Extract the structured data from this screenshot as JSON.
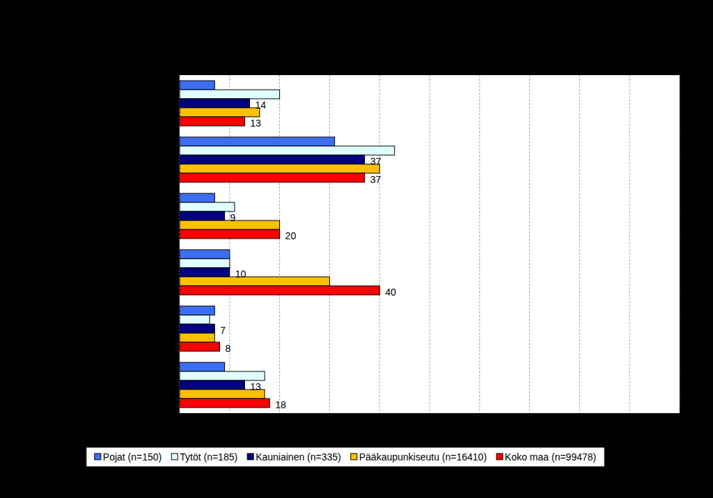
{
  "chart_data": {
    "type": "bar",
    "orientation": "horizontal",
    "categories": [
      null,
      null,
      null,
      null,
      null,
      null
    ],
    "series": [
      {
        "name": "Pojat (n=150)",
        "color": "#3d6ef2",
        "values": [
          7,
          31,
          7,
          10,
          7,
          9
        ],
        "data_labels": false
      },
      {
        "name": "Tytöt (n=185)",
        "color": "#e0ffff",
        "values": [
          20,
          43,
          11,
          10,
          6,
          17
        ],
        "data_labels": false
      },
      {
        "name": "Kauniainen (n=335)",
        "color": "#000080",
        "values": [
          14,
          37,
          9,
          10,
          7,
          13
        ],
        "data_labels": true
      },
      {
        "name": "Pääkaupunkiseutu (n=16410)",
        "color": "#ffc000",
        "values": [
          16,
          40,
          20,
          30,
          7,
          17
        ],
        "data_labels": false
      },
      {
        "name": "Koko maa (n=99478)",
        "color": "#ff0000",
        "values": [
          13,
          37,
          20,
          40,
          8,
          18
        ],
        "data_labels": true
      }
    ],
    "xlim": [
      0,
      100
    ],
    "xticks": [
      0,
      10,
      20,
      30,
      40,
      50,
      60,
      70,
      80,
      90,
      100
    ],
    "grid": true,
    "legend": "bottom",
    "tick_labels": false
  }
}
